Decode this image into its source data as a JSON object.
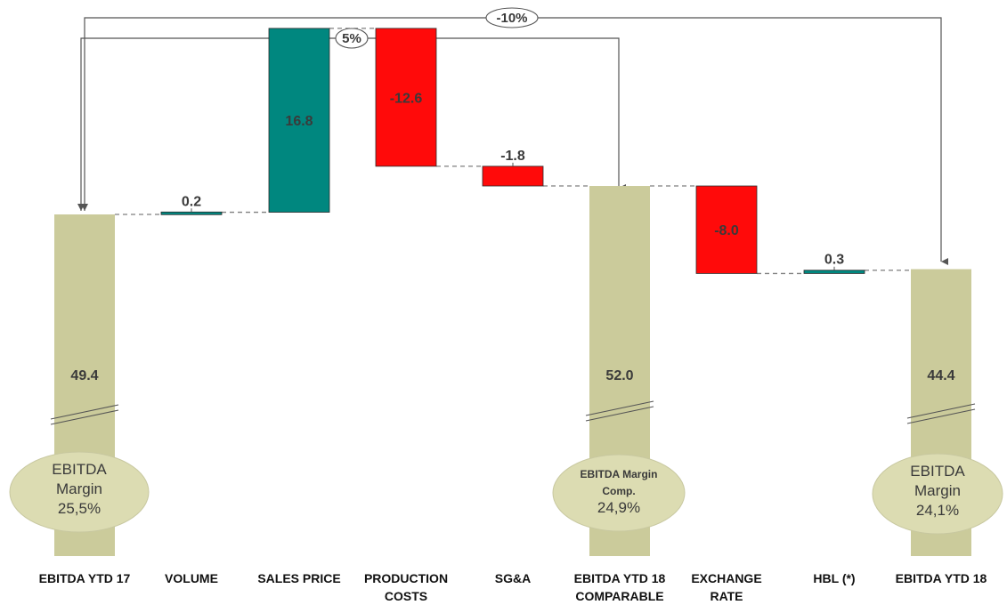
{
  "chart_data": {
    "type": "waterfall",
    "categories": [
      "EBITDA YTD 17",
      "VOLUME",
      "SALES PRICE",
      "PRODUCTION COSTS",
      "SG&A",
      "EBITDA YTD 18 COMPARABLE",
      "EXCHANGE RATE",
      "HBL (*)",
      "EBITDA YTD 18"
    ],
    "category_lines": [
      [
        "EBITDA YTD 17"
      ],
      [
        "VOLUME"
      ],
      [
        "SALES PRICE"
      ],
      [
        "PRODUCTION",
        "COSTS"
      ],
      [
        "SG&A"
      ],
      [
        "EBITDA YTD 18",
        "COMPARABLE"
      ],
      [
        "EXCHANGE",
        "RATE"
      ],
      [
        "HBL (*)"
      ],
      [
        "EBITDA YTD 18"
      ]
    ],
    "values": [
      49.4,
      0.2,
      16.8,
      -12.6,
      -1.8,
      52.0,
      -8.0,
      0.3,
      44.4
    ],
    "value_labels": [
      "49.4",
      "0.2",
      "16.8",
      "-12.6",
      "-1.8",
      "52.0",
      "-8.0",
      "0.3",
      "44.4"
    ],
    "kinds": [
      "total",
      "delta",
      "delta",
      "delta",
      "delta",
      "total",
      "delta",
      "delta",
      "total"
    ],
    "axis_broken": true,
    "margin_ovals": [
      {
        "index": 0,
        "lines": [
          "EBITDA",
          "Margin",
          "25,5%"
        ]
      },
      {
        "index": 5,
        "lines": [
          "EBITDA Margin",
          "Comp.",
          "24,9%"
        ]
      },
      {
        "index": 8,
        "lines": [
          "EBITDA",
          "Margin",
          "24,1%"
        ]
      }
    ],
    "change_arrows": [
      {
        "from": 0,
        "to": 5,
        "label": "5%"
      },
      {
        "from": 0,
        "to": 8,
        "label": "-10%"
      }
    ],
    "colors": {
      "total": "#cbcb9b",
      "increase": "#00877f",
      "decrease": "#ff0a0a",
      "oval": "#dcdcb2",
      "connector": "#7f7f7f",
      "arrow": "#555555"
    }
  }
}
